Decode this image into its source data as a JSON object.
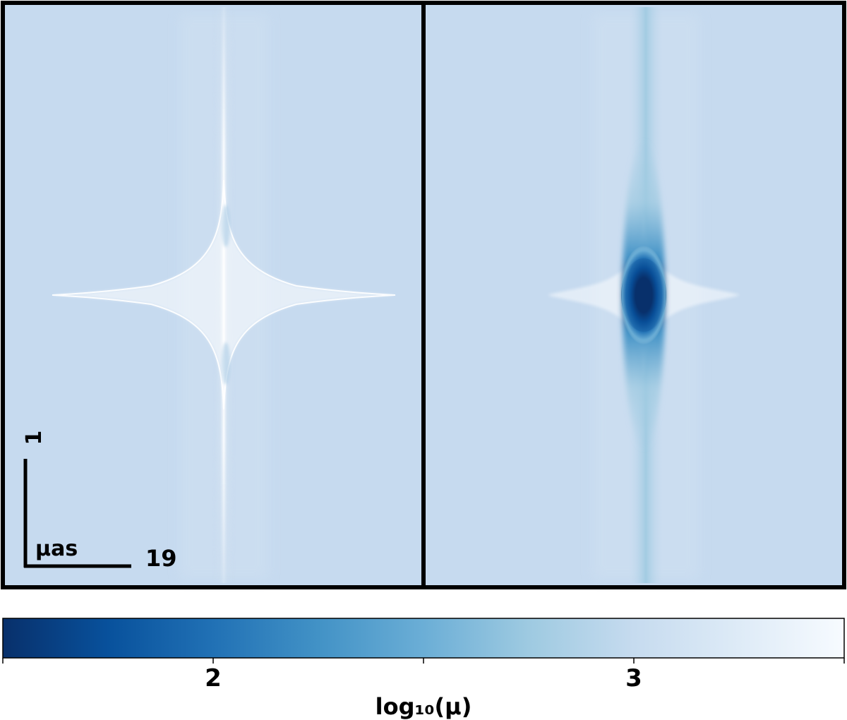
{
  "chart_data": {
    "type": "heatmap",
    "panels": [
      {
        "description_id": "left",
        "features": "cusp caustic, bright at center"
      },
      {
        "description_id": "right",
        "features": "cusp caustic with dark core at center"
      }
    ],
    "colorbar": {
      "label": "log₁₀(μ)",
      "ticks": [
        {
          "value": 2,
          "label": "2"
        },
        {
          "value": 3,
          "label": "3"
        }
      ],
      "range": [
        1.5,
        3.5
      ],
      "colormap": [
        "#08306b",
        "#08519c",
        "#2171b5",
        "#4292c6",
        "#6baed6",
        "#9ecae1",
        "#c6dbef",
        "#deebf7",
        "#f7fbff"
      ]
    },
    "scale_bar": {
      "unit": "μas",
      "vertical_value": "1",
      "horizontal_value": "19"
    },
    "background_color": "#c6daef"
  }
}
